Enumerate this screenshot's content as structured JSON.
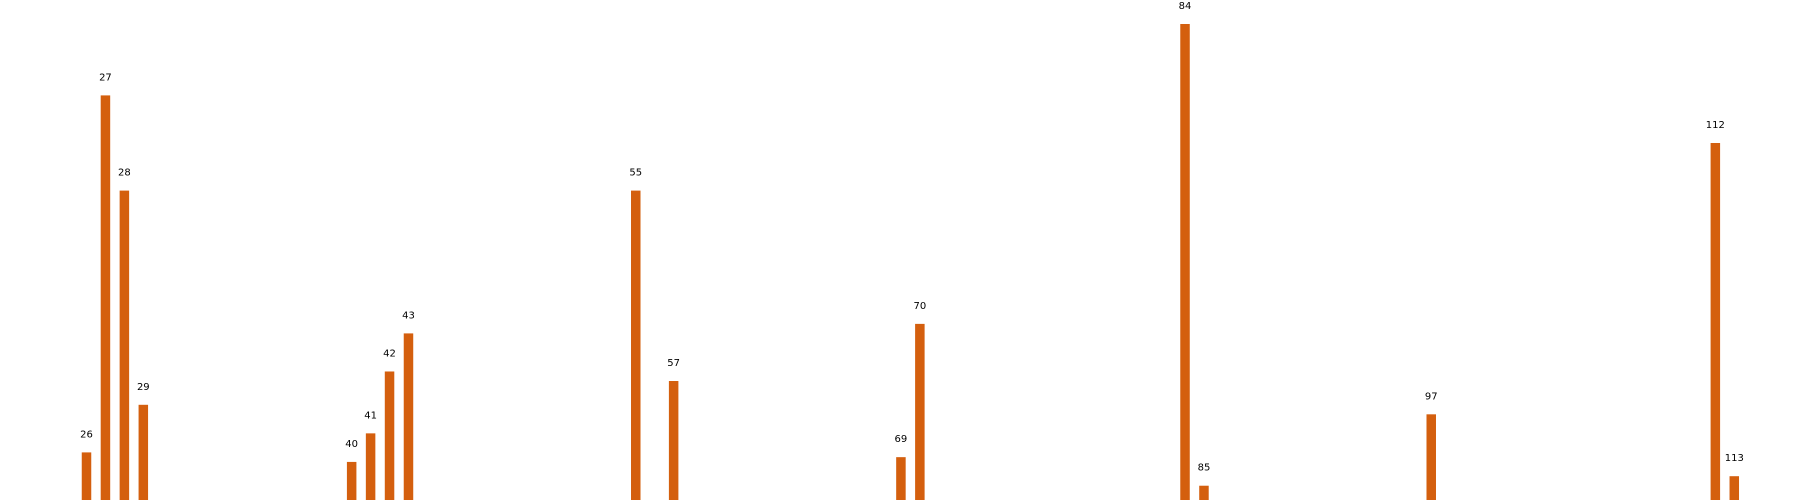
{
  "chart_data": {
    "type": "bar",
    "title": "",
    "xlabel": "",
    "ylabel": "",
    "grid": false,
    "bar_color": "#d45f0e",
    "xlim": [
      20,
      118
    ],
    "ylim": [
      0,
      100
    ],
    "bars": [
      {
        "label": "26",
        "x": 26,
        "value": 10
      },
      {
        "label": "27",
        "x": 27,
        "value": 85
      },
      {
        "label": "28",
        "x": 28,
        "value": 65
      },
      {
        "label": "29",
        "x": 29,
        "value": 20
      },
      {
        "label": "40",
        "x": 40,
        "value": 8
      },
      {
        "label": "41",
        "x": 41,
        "value": 14
      },
      {
        "label": "42",
        "x": 42,
        "value": 27
      },
      {
        "label": "43",
        "x": 43,
        "value": 35
      },
      {
        "label": "55",
        "x": 55,
        "value": 65
      },
      {
        "label": "57",
        "x": 57,
        "value": 25
      },
      {
        "label": "69",
        "x": 69,
        "value": 9
      },
      {
        "label": "70",
        "x": 70,
        "value": 37
      },
      {
        "label": "84",
        "x": 84,
        "value": 100
      },
      {
        "label": "85",
        "x": 85,
        "value": 3
      },
      {
        "label": "97",
        "x": 97,
        "value": 18
      },
      {
        "label": "112",
        "x": 112,
        "value": 75
      },
      {
        "label": "113",
        "x": 113,
        "value": 5
      }
    ]
  }
}
